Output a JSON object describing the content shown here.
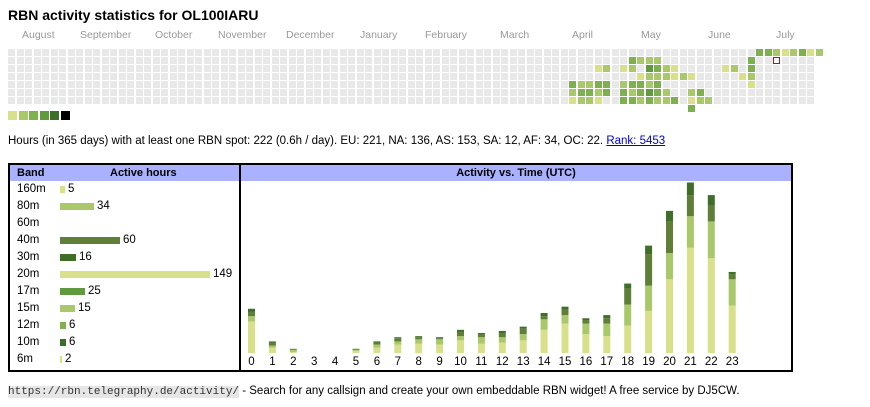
{
  "title": "RBN activity statistics for OL100IARU",
  "months": [
    "August",
    "September",
    "October",
    "November",
    "December",
    "January",
    "February",
    "March",
    "April",
    "May",
    "June",
    "July"
  ],
  "palette": {
    "empty": "#e8e8e8",
    "levels": [
      "#d8e08a",
      "#a8c86a",
      "#7fb050",
      "#5f9a3c",
      "#3f6e28",
      "#000000"
    ],
    "today_border": "#dd0000"
  },
  "summary": {
    "text": "Hours (in 365 days) with at least one RBN spot: 222 (0.6h / day). EU: 221, NA: 136, AS: 153, SA: 12, AF: 34, OC: 22.",
    "rank": "Rank: 5453"
  },
  "band_table": {
    "header_band": "Band",
    "header_hours": "Active hours",
    "rows": [
      {
        "band": "160m",
        "hours": 5,
        "color": "#d8e08a"
      },
      {
        "band": "80m",
        "hours": 34,
        "color": "#a8c86a"
      },
      {
        "band": "60m",
        "hours": 0,
        "color": "#a8c86a"
      },
      {
        "band": "40m",
        "hours": 60,
        "color": "#5f7f38"
      },
      {
        "band": "30m",
        "hours": 16,
        "color": "#3f6e28"
      },
      {
        "band": "20m",
        "hours": 149,
        "color": "#d8e08a"
      },
      {
        "band": "17m",
        "hours": 25,
        "color": "#5f9a3c"
      },
      {
        "band": "15m",
        "hours": 15,
        "color": "#a8c86a"
      },
      {
        "band": "12m",
        "hours": 6,
        "color": "#7fb050"
      },
      {
        "band": "10m",
        "hours": 6,
        "color": "#3f6e28"
      },
      {
        "band": "6m",
        "hours": 2,
        "color": "#d8e08a"
      }
    ]
  },
  "chart_data": {
    "type": "bar",
    "title": "Activity vs. Time (UTC)",
    "categories": [
      "0",
      "1",
      "2",
      "3",
      "4",
      "5",
      "6",
      "7",
      "8",
      "9",
      "10",
      "11",
      "12",
      "13",
      "14",
      "15",
      "16",
      "17",
      "18",
      "19",
      "20",
      "21",
      "22",
      "23"
    ],
    "series": [
      {
        "color": "#d8e08a",
        "values": [
          30,
          5,
          1,
          0,
          0,
          2,
          5,
          8,
          9,
          8,
          12,
          9,
          10,
          12,
          22,
          28,
          18,
          16,
          26,
          40,
          70,
          100,
          90,
          45
        ]
      },
      {
        "color": "#a8c86a",
        "values": [
          5,
          2,
          2,
          0,
          0,
          1,
          3,
          3,
          4,
          5,
          4,
          6,
          5,
          6,
          10,
          8,
          10,
          12,
          20,
          24,
          25,
          30,
          35,
          25
        ]
      },
      {
        "color": "#5f7f38",
        "values": [
          4,
          3,
          1,
          0,
          0,
          1,
          2,
          3,
          2,
          1,
          4,
          3,
          4,
          5,
          3,
          5,
          3,
          5,
          15,
          30,
          30,
          20,
          15,
          5
        ]
      },
      {
        "color": "#3f6e28",
        "values": [
          3,
          1,
          0,
          0,
          0,
          0,
          1,
          1,
          1,
          1,
          2,
          1,
          2,
          2,
          3,
          3,
          2,
          3,
          5,
          8,
          10,
          12,
          10,
          2
        ]
      }
    ],
    "max": 152
  },
  "footer": {
    "url": "https://rbn.telegraphy.de/activity/",
    "text": " - Search for any callsign and create your own embeddable RBN widget! A free service by DJ5CW."
  }
}
